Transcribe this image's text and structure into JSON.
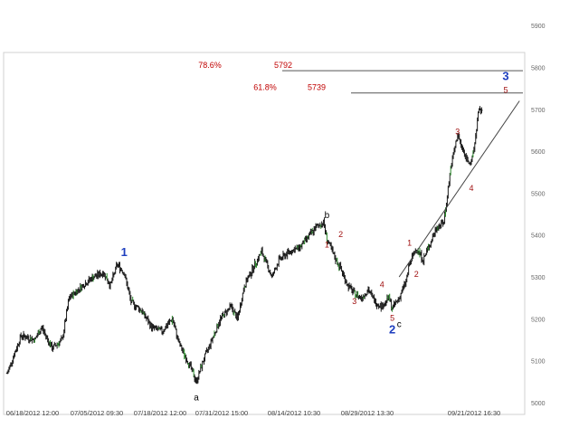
{
  "chart_data": {
    "type": "ohlc",
    "grid": false,
    "ylim": [
      5000,
      5950
    ],
    "ytick_values": [
      5000,
      5100,
      5200,
      5300,
      5400,
      5500,
      5600,
      5700,
      5800,
      5900
    ],
    "ytick_labels": [
      "5000",
      "5100",
      "5200",
      "5300",
      "5400",
      "5500",
      "5600",
      "5700",
      "5800",
      "5900"
    ],
    "xtick_labels": [
      "06/18/2012 12:00",
      "07/05/2012 09:30",
      "07/18/2012 12:00",
      "07/31/2012 15:00",
      "08/14/2012 10:30",
      "08/29/2012 13:30",
      "09/21/2012 16:30"
    ],
    "price_path": [
      [
        0,
        5070
      ],
      [
        4,
        5160
      ],
      [
        8,
        5150
      ],
      [
        10,
        5180
      ],
      [
        13,
        5130
      ],
      [
        16,
        5150
      ],
      [
        18,
        5250
      ],
      [
        22,
        5280
      ],
      [
        25,
        5300
      ],
      [
        28,
        5310
      ],
      [
        30,
        5280
      ],
      [
        32,
        5330
      ],
      [
        34,
        5310
      ],
      [
        36,
        5240
      ],
      [
        39,
        5220
      ],
      [
        42,
        5180
      ],
      [
        45,
        5170
      ],
      [
        48,
        5200
      ],
      [
        50,
        5140
      ],
      [
        53,
        5090
      ],
      [
        55,
        5050
      ],
      [
        57,
        5100
      ],
      [
        60,
        5160
      ],
      [
        62,
        5200
      ],
      [
        65,
        5230
      ],
      [
        67,
        5200
      ],
      [
        69,
        5280
      ],
      [
        72,
        5330
      ],
      [
        74,
        5360
      ],
      [
        77,
        5300
      ],
      [
        79,
        5340
      ],
      [
        82,
        5360
      ],
      [
        85,
        5370
      ],
      [
        88,
        5400
      ],
      [
        90,
        5420
      ],
      [
        92,
        5430
      ],
      [
        93,
        5390
      ],
      [
        95,
        5350
      ],
      [
        97,
        5320
      ],
      [
        99,
        5280
      ],
      [
        101,
        5260
      ],
      [
        103,
        5250
      ],
      [
        105,
        5270
      ],
      [
        107,
        5240
      ],
      [
        109,
        5230
      ],
      [
        111,
        5250
      ],
      [
        112,
        5225
      ],
      [
        114,
        5250
      ],
      [
        116,
        5290
      ],
      [
        117,
        5330
      ],
      [
        119,
        5370
      ],
      [
        121,
        5340
      ],
      [
        123,
        5380
      ],
      [
        125,
        5420
      ],
      [
        127,
        5430
      ],
      [
        129,
        5560
      ],
      [
        131,
        5640
      ],
      [
        133,
        5590
      ],
      [
        135,
        5570
      ],
      [
        136,
        5620
      ],
      [
        137,
        5690
      ],
      [
        138,
        5700
      ]
    ],
    "trendline": [
      [
        114,
        5300
      ],
      [
        149,
        5720
      ]
    ],
    "levels": [
      {
        "pct_label": "78.6%",
        "value_label": "5792",
        "value": 5792
      },
      {
        "pct_label": "61.8%",
        "value_label": "5739",
        "value": 5739
      }
    ],
    "wave_labels": [
      {
        "text": "1",
        "x": 34,
        "y": 5350,
        "color": "#1f3fbf"
      },
      {
        "text": "a",
        "x": 55,
        "y": 5005,
        "color": "#000000"
      },
      {
        "text": "b",
        "x": 93,
        "y": 5440,
        "color": "#000000"
      },
      {
        "text": "1",
        "x": 93,
        "y": 5370,
        "color": "#a01010"
      },
      {
        "text": "2",
        "x": 97,
        "y": 5395,
        "color": "#a01010"
      },
      {
        "text": "3",
        "x": 101,
        "y": 5235,
        "color": "#a01010"
      },
      {
        "text": "4",
        "x": 109,
        "y": 5275,
        "color": "#a01010"
      },
      {
        "text": "5",
        "x": 112,
        "y": 5195,
        "color": "#a01010"
      },
      {
        "text": "c",
        "x": 114,
        "y": 5180,
        "color": "#000000"
      },
      {
        "text": "2",
        "x": 112,
        "y": 5165,
        "color": "#1f3fbf"
      },
      {
        "text": "1",
        "x": 117,
        "y": 5375,
        "color": "#a01010"
      },
      {
        "text": "2",
        "x": 119,
        "y": 5300,
        "color": "#a01010"
      },
      {
        "text": "3",
        "x": 131,
        "y": 5640,
        "color": "#a01010"
      },
      {
        "text": "4",
        "x": 135,
        "y": 5505,
        "color": "#a01010"
      },
      {
        "text": "3",
        "x": 145,
        "y": 5770,
        "color": "#1f3fbf"
      },
      {
        "text": "5",
        "x": 145,
        "y": 5740,
        "color": "#a01010"
      }
    ],
    "colors": {
      "bars": "#1a1a1a",
      "bar_accent": "#2e8b2e",
      "level_text": "#c00000",
      "wave_red": "#a01010",
      "wave_blue": "#1f3fbf"
    }
  }
}
